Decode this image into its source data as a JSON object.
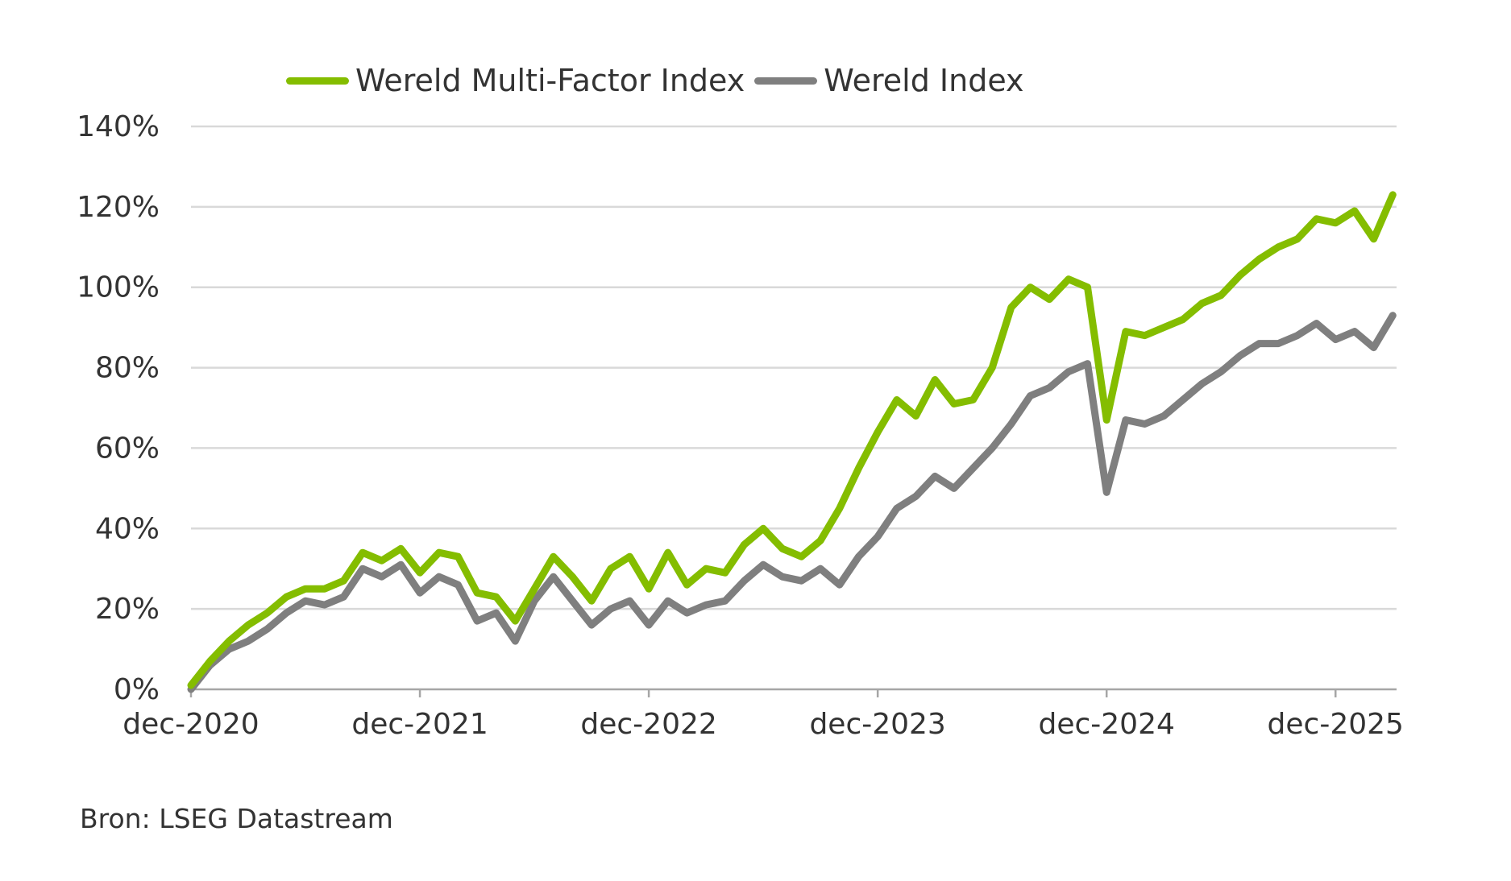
{
  "chart_data": {
    "type": "line",
    "title": "",
    "xlabel": "",
    "ylabel": "",
    "ylim": [
      0,
      140
    ],
    "y_ticks": [
      "0%",
      "20%",
      "40%",
      "60%",
      "80%",
      "100%",
      "120%",
      "140%"
    ],
    "y_tick_values": [
      0,
      20,
      40,
      60,
      80,
      100,
      120,
      140
    ],
    "x_ticks": [
      "dec-2020",
      "dec-2021",
      "dec-2022",
      "dec-2023",
      "dec-2024",
      "dec-2025"
    ],
    "x_tick_values": [
      "2020-12",
      "2021-12",
      "2022-12",
      "2023-12",
      "2024-12",
      "2025-12"
    ],
    "x_range": [
      "2020-12",
      "2026-03"
    ],
    "grid": "horizontal",
    "legend_position": "top",
    "series": [
      {
        "name": "Wereld Multi-Factor Index",
        "color": "#84BD00",
        "x": [
          "2020-12",
          "2021-01",
          "2021-02",
          "2021-03",
          "2021-04",
          "2021-05",
          "2021-06",
          "2021-07",
          "2021-08",
          "2021-09",
          "2021-10",
          "2021-11",
          "2021-12",
          "2022-01",
          "2022-02",
          "2022-03",
          "2022-04",
          "2022-05",
          "2022-06",
          "2022-07",
          "2022-08",
          "2022-09",
          "2022-10",
          "2022-11",
          "2022-12",
          "2023-01",
          "2023-02",
          "2023-03",
          "2023-04",
          "2023-05",
          "2023-06",
          "2023-07",
          "2023-08",
          "2023-09",
          "2023-10",
          "2023-11",
          "2023-12",
          "2024-01",
          "2024-02",
          "2024-03",
          "2024-04",
          "2024-05",
          "2024-06",
          "2024-07",
          "2024-08",
          "2024-09",
          "2024-10",
          "2024-11",
          "2024-12",
          "2025-01",
          "2025-02",
          "2025-03",
          "2025-04",
          "2025-05",
          "2025-06",
          "2025-07",
          "2025-08",
          "2025-09",
          "2025-10",
          "2025-11",
          "2025-12",
          "2026-01",
          "2026-02",
          "2026-03"
        ],
        "values": [
          1,
          7,
          12,
          16,
          19,
          23,
          25,
          25,
          27,
          34,
          32,
          35,
          29,
          34,
          33,
          24,
          23,
          17,
          25,
          33,
          28,
          22,
          30,
          33,
          25,
          34,
          26,
          30,
          29,
          36,
          40,
          35,
          33,
          37,
          45,
          55,
          64,
          72,
          68,
          77,
          71,
          72,
          80,
          95,
          100,
          97,
          102,
          100,
          67,
          89,
          88,
          90,
          92,
          96,
          98,
          103,
          107,
          110,
          112,
          117,
          116,
          119,
          112,
          123
        ]
      },
      {
        "name": "Wereld Index",
        "color": "#7F7F7F",
        "x": [
          "2020-12",
          "2021-01",
          "2021-02",
          "2021-03",
          "2021-04",
          "2021-05",
          "2021-06",
          "2021-07",
          "2021-08",
          "2021-09",
          "2021-10",
          "2021-11",
          "2021-12",
          "2022-01",
          "2022-02",
          "2022-03",
          "2022-04",
          "2022-05",
          "2022-06",
          "2022-07",
          "2022-08",
          "2022-09",
          "2022-10",
          "2022-11",
          "2022-12",
          "2023-01",
          "2023-02",
          "2023-03",
          "2023-04",
          "2023-05",
          "2023-06",
          "2023-07",
          "2023-08",
          "2023-09",
          "2023-10",
          "2023-11",
          "2023-12",
          "2024-01",
          "2024-02",
          "2024-03",
          "2024-04",
          "2024-05",
          "2024-06",
          "2024-07",
          "2024-08",
          "2024-09",
          "2024-10",
          "2024-11",
          "2024-12",
          "2025-01",
          "2025-02",
          "2025-03",
          "2025-04",
          "2025-05",
          "2025-06",
          "2025-07",
          "2025-08",
          "2025-09",
          "2025-10",
          "2025-11",
          "2025-12",
          "2026-01",
          "2026-02",
          "2026-03"
        ],
        "values": [
          0,
          6,
          10,
          12,
          15,
          19,
          22,
          21,
          23,
          30,
          28,
          31,
          24,
          28,
          26,
          17,
          19,
          12,
          22,
          28,
          22,
          16,
          20,
          22,
          16,
          22,
          19,
          21,
          22,
          27,
          31,
          28,
          27,
          30,
          26,
          33,
          38,
          45,
          48,
          53,
          50,
          55,
          60,
          66,
          73,
          75,
          79,
          81,
          49,
          67,
          66,
          68,
          72,
          76,
          79,
          83,
          86,
          86,
          88,
          91,
          87,
          89,
          85,
          93
        ]
      }
    ],
    "source_note": "Bron: LSEG Datastream"
  }
}
